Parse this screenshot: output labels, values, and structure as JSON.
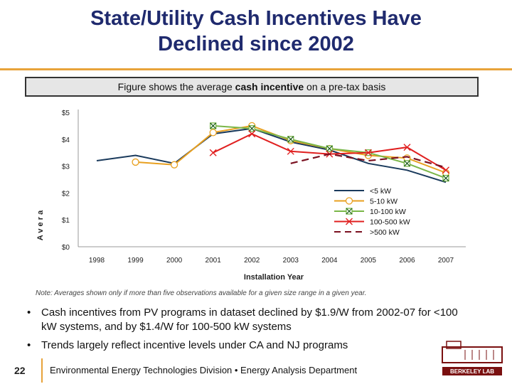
{
  "slide": {
    "title_line1": "State/Utility Cash Incentives Have",
    "title_line2": "Declined since 2002",
    "caption_pre": "Figure shows the average ",
    "caption_bold": "cash incentive",
    "caption_post": " on a pre-tax basis",
    "note": "Note: Averages shown only if more than five observations available for a given size range in a given year.",
    "bullets": [
      "Cash incentives from PV programs in dataset declined by $1.9/W from 2002-07 for <100 kW systems, and by $1.4/W for 100-500 kW systems",
      "Trends largely reflect incentive levels under CA and NJ programs"
    ],
    "page_number": "22",
    "footer": "Environmental Energy Technologies Division • Energy Analysis Department",
    "logo_text": "BERKELEY LAB",
    "colors": {
      "title": "#1f2a6e",
      "rule": "#e8a33a"
    }
  },
  "chart_data": {
    "type": "line",
    "xlabel": "Installation Year",
    "ylabel": "A v e r a",
    "y_ticks": [
      "$0",
      "$1",
      "$2",
      "$3",
      "$4",
      "$5"
    ],
    "ylim": [
      0,
      5
    ],
    "x": [
      1998,
      1999,
      2000,
      2001,
      2002,
      2003,
      2004,
      2005,
      2006,
      2007
    ],
    "legend_position": "right",
    "series": [
      {
        "name": "<5 kW",
        "color": "#1a3a5c",
        "marker": "none",
        "dash": "solid",
        "values": [
          3.2,
          3.4,
          3.1,
          4.2,
          4.4,
          3.9,
          3.6,
          3.1,
          2.85,
          2.4
        ]
      },
      {
        "name": "5-10 kW",
        "color": "#e8a020",
        "marker": "circle",
        "dash": "solid",
        "values": [
          null,
          3.15,
          3.05,
          4.25,
          4.5,
          3.95,
          3.65,
          3.4,
          3.3,
          2.75
        ]
      },
      {
        "name": "10-100 kW",
        "color": "#7ab648",
        "marker": "boxx",
        "dash": "solid",
        "values": [
          null,
          null,
          null,
          4.5,
          4.4,
          4.0,
          3.65,
          3.5,
          3.1,
          2.55
        ]
      },
      {
        "name": "100-500 kW",
        "color": "#e02020",
        "marker": "x",
        "dash": "solid",
        "values": [
          null,
          null,
          null,
          3.5,
          4.2,
          3.55,
          3.45,
          3.5,
          3.7,
          2.85
        ]
      },
      {
        "name": ">500 kW",
        "color": "#7a1020",
        "marker": "none",
        "dash": "dashed",
        "values": [
          null,
          null,
          null,
          null,
          null,
          3.1,
          3.45,
          3.2,
          3.35,
          2.95
        ]
      }
    ]
  }
}
